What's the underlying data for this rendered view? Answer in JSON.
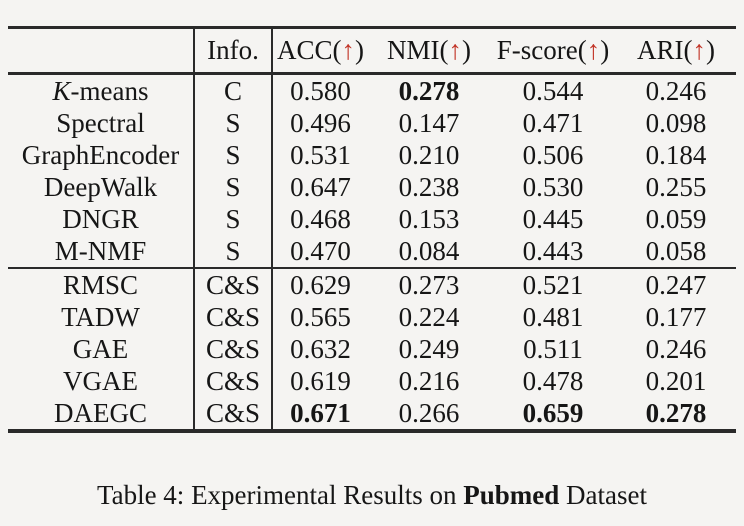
{
  "header": {
    "info_label": "Info.",
    "metrics": [
      {
        "prefix": "ACC(",
        "arrow": "↑",
        "suffix": ")"
      },
      {
        "prefix": "NMI(",
        "arrow": "↑",
        "suffix": ")"
      },
      {
        "prefix": "F-score(",
        "arrow": "↑",
        "suffix": ")"
      },
      {
        "prefix": "ARI(",
        "arrow": "↑",
        "suffix": ")"
      }
    ]
  },
  "sections": [
    {
      "rows": [
        {
          "italic_prefix": "K",
          "method_rest": "-means",
          "method": "K-means",
          "info": "C",
          "values": [
            "0.580",
            "0.278",
            "0.544",
            "0.246"
          ],
          "bold_indices": [
            1
          ]
        },
        {
          "method": "Spectral",
          "info": "S",
          "values": [
            "0.496",
            "0.147",
            "0.471",
            "0.098"
          ],
          "bold_indices": []
        },
        {
          "method": "GraphEncoder",
          "info": "S",
          "values": [
            "0.531",
            "0.210",
            "0.506",
            "0.184"
          ],
          "bold_indices": []
        },
        {
          "method": "DeepWalk",
          "info": "S",
          "values": [
            "0.647",
            "0.238",
            "0.530",
            "0.255"
          ],
          "bold_indices": []
        },
        {
          "method": "DNGR",
          "info": "S",
          "values": [
            "0.468",
            "0.153",
            "0.445",
            "0.059"
          ],
          "bold_indices": []
        },
        {
          "method": "M-NMF",
          "info": "S",
          "values": [
            "0.470",
            "0.084",
            "0.443",
            "0.058"
          ],
          "bold_indices": []
        }
      ]
    },
    {
      "rows": [
        {
          "method": "RMSC",
          "info": "C&S",
          "values": [
            "0.629",
            "0.273",
            "0.521",
            "0.247"
          ],
          "bold_indices": []
        },
        {
          "method": "TADW",
          "info": "C&S",
          "values": [
            "0.565",
            "0.224",
            "0.481",
            "0.177"
          ],
          "bold_indices": []
        },
        {
          "method": "GAE",
          "info": "C&S",
          "values": [
            "0.632",
            "0.249",
            "0.511",
            "0.246"
          ],
          "bold_indices": []
        },
        {
          "method": "VGAE",
          "info": "C&S",
          "values": [
            "0.619",
            "0.216",
            "0.478",
            "0.201"
          ],
          "bold_indices": []
        },
        {
          "method": "DAEGC",
          "info": "C&S",
          "values": [
            "0.671",
            "0.266",
            "0.659",
            "0.278"
          ],
          "bold_indices": [
            0,
            2,
            3
          ]
        }
      ]
    }
  ],
  "caption": {
    "prefix": "Table 4: Experimental Results on ",
    "dataset": "Pubmed",
    "suffix": " Dataset"
  },
  "colors": {
    "arrow_red": "#c23528",
    "rule": "#2a2a2a",
    "text": "#161616",
    "background": "#f5f4f2"
  }
}
